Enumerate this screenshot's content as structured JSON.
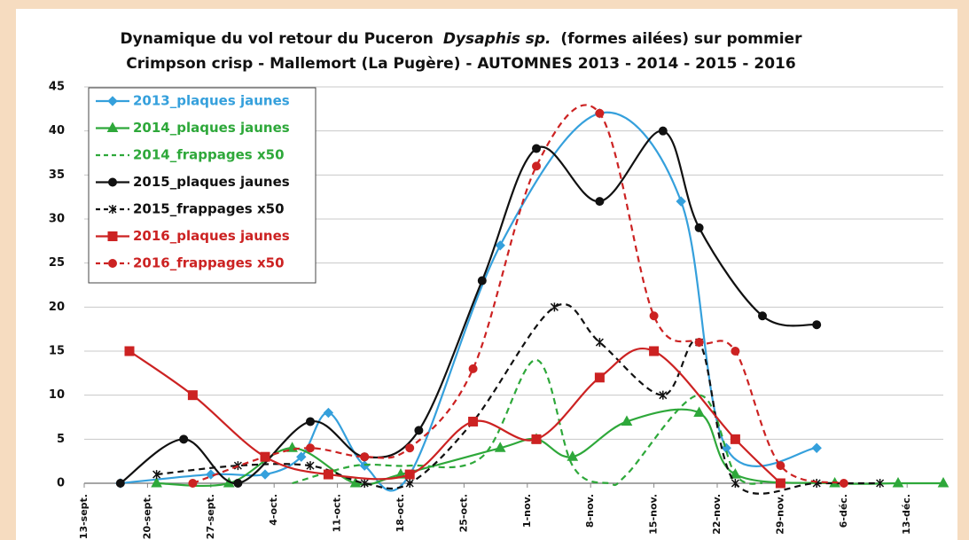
{
  "chart_data": {
    "type": "line",
    "title": [
      "Dynamique du vol retour du Puceron",
      "Dysaphis sp.",
      "(formes ailées) sur pommier"
    ],
    "subtitle": "Crimpson crisp - Mallemort (La Pugère) - AUTOMNES 2013 - 2014 - 2015 - 2016",
    "xlim": [
      0,
      95
    ],
    "ylim": [
      0,
      45
    ],
    "yticks": [
      0,
      5,
      10,
      15,
      20,
      25,
      30,
      35,
      40,
      45
    ],
    "xticks": [
      {
        "value": 0,
        "label": "13-sept."
      },
      {
        "value": 7,
        "label": "20-sept."
      },
      {
        "value": 14,
        "label": "27-sept."
      },
      {
        "value": 21,
        "label": "4-oct."
      },
      {
        "value": 28,
        "label": "11-oct."
      },
      {
        "value": 35,
        "label": "18-oct."
      },
      {
        "value": 42,
        "label": "25-oct."
      },
      {
        "value": 49,
        "label": "1-nov."
      },
      {
        "value": 56,
        "label": "8-nov."
      },
      {
        "value": 63,
        "label": "15-nov."
      },
      {
        "value": 70,
        "label": "22-nov."
      },
      {
        "value": 77,
        "label": "29-nov."
      },
      {
        "value": 84,
        "label": "6-déc."
      },
      {
        "value": 91,
        "label": "13-déc."
      }
    ],
    "grid": true,
    "legend": "upper left",
    "smooth": true,
    "series": [
      {
        "name": "2013_plaques jaunes",
        "color": "#35a0dc",
        "marker": "diamond",
        "dash": false,
        "x": [
          4,
          14,
          20,
          24,
          27,
          31,
          36,
          46,
          57,
          66,
          71,
          81
        ],
        "values": [
          0,
          1,
          1,
          3,
          8,
          2,
          1,
          27,
          42,
          32,
          4,
          4
        ]
      },
      {
        "name": "2014_plaques jaunes",
        "color": "#2ea83a",
        "marker": "triangle",
        "dash": false,
        "x": [
          8,
          16,
          23,
          30,
          35,
          46,
          50,
          54,
          60,
          68,
          72,
          83,
          90,
          95
        ],
        "values": [
          0,
          0,
          4,
          0,
          1,
          4,
          5,
          3,
          7,
          8,
          1,
          0,
          0,
          0
        ]
      },
      {
        "name": "2014_frappages x50",
        "color": "#2ea83a",
        "marker": "none",
        "dash": true,
        "x": [
          23,
          30,
          36,
          44,
          50,
          54,
          58,
          60,
          68,
          72,
          75
        ],
        "values": [
          0,
          2,
          2,
          3,
          14,
          2,
          0,
          1,
          10,
          1,
          0
        ]
      },
      {
        "name": "2015_plaques jaunes",
        "color": "#111111",
        "marker": "circle",
        "dash": false,
        "x": [
          4,
          11,
          17,
          25,
          31,
          37,
          44,
          50,
          57,
          64,
          68,
          75,
          81
        ],
        "values": [
          0,
          5,
          0,
          7,
          3,
          6,
          23,
          38,
          32,
          40,
          29,
          19,
          18
        ]
      },
      {
        "name": "2015_frappages x50",
        "color": "#111111",
        "marker": "x",
        "dash": true,
        "x": [
          8,
          17,
          25,
          31,
          36,
          43,
          52,
          57,
          64,
          68,
          72,
          81,
          88
        ],
        "values": [
          1,
          2,
          2,
          0,
          0,
          7,
          20,
          16,
          10,
          16,
          0,
          0,
          0
        ]
      },
      {
        "name": "2016_plaques jaunes",
        "color": "#cc2222",
        "marker": "square",
        "dash": false,
        "x": [
          5,
          12,
          20,
          27,
          36,
          43,
          50,
          57,
          63,
          72,
          77
        ],
        "values": [
          15,
          10,
          3,
          1,
          1,
          7,
          5,
          12,
          15,
          5,
          0
        ]
      },
      {
        "name": "2016_frappages x50",
        "color": "#cc2222",
        "marker": "circle",
        "dash": true,
        "x": [
          12,
          20,
          25,
          31,
          36,
          43,
          50,
          57,
          63,
          68,
          72,
          77,
          84
        ],
        "values": [
          0,
          3,
          4,
          3,
          4,
          13,
          36,
          42,
          19,
          16,
          15,
          2,
          0
        ]
      }
    ]
  }
}
